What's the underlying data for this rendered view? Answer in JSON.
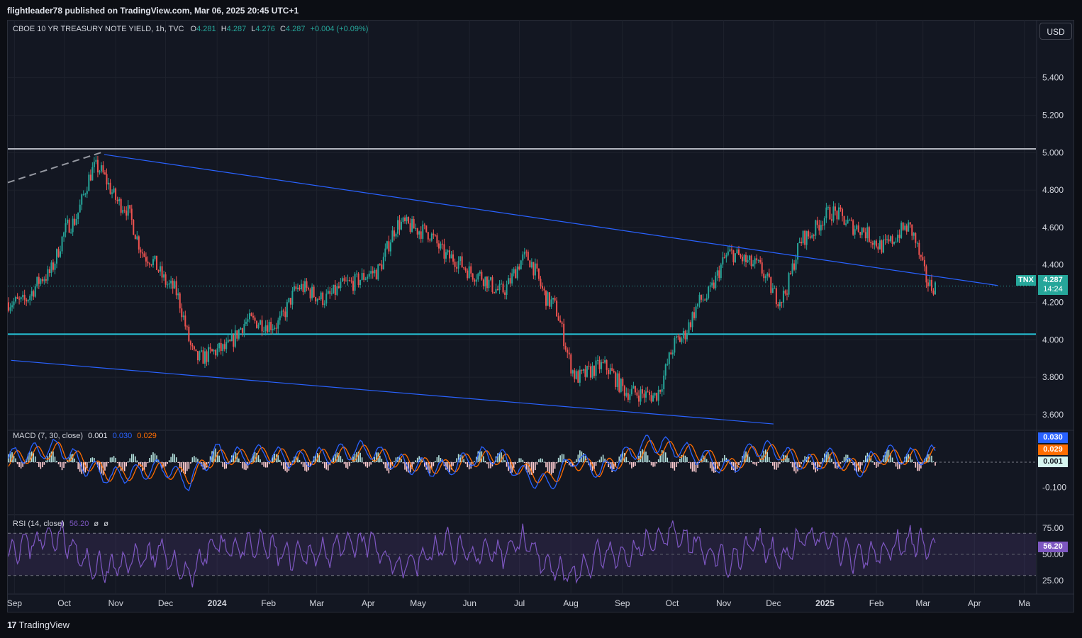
{
  "header": {
    "publish_text": "flightleader78 published on TradingView.com, Mar 06, 2025 20:45 UTC+1"
  },
  "toolbar": {
    "currency_label": "USD"
  },
  "footer": {
    "brand": "TradingView",
    "brand_mark": "17"
  },
  "colors": {
    "up": "#26a69a",
    "down": "#ef5350",
    "channel": "#2962ff",
    "support": "#26c6da",
    "resistance": "#b2b5be",
    "macd": "#2962ff",
    "signal": "#ff6d00",
    "rsi": "#7e57c2"
  },
  "legend": {
    "symbol": "CBOE 10 YR TREASURY NOTE YIELD, 1h, TVC",
    "o_label": "O",
    "o": "4.281",
    "h_label": "H",
    "h": "4.287",
    "l_label": "L",
    "l": "4.276",
    "c_label": "C",
    "c": "4.287",
    "change": "+0.004 (+0.09%)"
  },
  "price_tag": {
    "symbol": "TNX",
    "price": "4.287",
    "countdown": "14:24"
  },
  "macd_legend": {
    "title": "MACD (7, 30, close)",
    "hist": "0.001",
    "macd": "0.030",
    "signal": "0.029"
  },
  "rsi_legend": {
    "title": "RSI (14, close)",
    "value": "56.20",
    "extra1": "ø",
    "extra2": "ø"
  },
  "chart_data": [
    {
      "type": "candlestick",
      "ylim": [
        3.52,
        5.52
      ],
      "yticks": [
        "5.400",
        "5.200",
        "5.000",
        "4.800",
        "4.600",
        "4.400",
        "4.200",
        "4.000",
        "3.800",
        "3.600"
      ],
      "xticks": [
        "Sep",
        "Oct",
        "Nov",
        "Dec",
        "2024",
        "Feb",
        "Mar",
        "Apr",
        "May",
        "Jun",
        "Jul",
        "Aug",
        "Sep",
        "Oct",
        "Nov",
        "Dec",
        "2025",
        "Feb",
        "Mar",
        "Apr",
        "Ma"
      ],
      "x": [
        "2023-09-05",
        "2023-09-20",
        "2023-10-05",
        "2023-10-20",
        "2023-11-05",
        "2023-11-20",
        "2023-12-05",
        "2023-12-20",
        "2024-01-05",
        "2024-01-20",
        "2024-02-05",
        "2024-02-20",
        "2024-03-05",
        "2024-03-20",
        "2024-04-05",
        "2024-04-20",
        "2024-05-05",
        "2024-05-20",
        "2024-06-05",
        "2024-06-20",
        "2024-07-05",
        "2024-07-20",
        "2024-08-05",
        "2024-08-20",
        "2024-09-05",
        "2024-09-20",
        "2024-10-05",
        "2024-10-20",
        "2024-11-05",
        "2024-11-20",
        "2024-12-05",
        "2024-12-20",
        "2025-01-05",
        "2025-01-20",
        "2025-02-05",
        "2025-02-20",
        "2025-03-06"
      ],
      "values": [
        4.2,
        4.34,
        4.62,
        4.92,
        4.72,
        4.44,
        4.28,
        3.9,
        3.95,
        4.1,
        4.08,
        4.28,
        4.22,
        4.3,
        4.36,
        4.62,
        4.58,
        4.44,
        4.35,
        4.26,
        4.44,
        4.2,
        3.8,
        3.86,
        3.72,
        3.7,
        4.0,
        4.22,
        4.46,
        4.4,
        4.22,
        4.55,
        4.68,
        4.6,
        4.5,
        4.6,
        4.287
      ],
      "last_price": 4.287,
      "support_level": 4.03,
      "resistance_level": 5.02,
      "upper_trendline": [
        [
          "2023-10-25",
          4.99
        ],
        [
          "2025-04-15",
          4.29
        ]
      ],
      "lower_trendline": [
        [
          "2023-08-30",
          3.89
        ],
        [
          "2024-12-01",
          3.55
        ]
      ]
    },
    {
      "type": "line",
      "name": "MACD (7, 30, close)",
      "yticks": [
        "-0.100"
      ],
      "series": [
        {
          "name": "MACD",
          "values": [
            0.02,
            0.04,
            0.06,
            -0.02,
            -0.06,
            -0.04,
            -0.02,
            -0.08,
            0.04,
            0.02,
            0.04,
            0.01,
            0.02,
            0.04,
            0.05,
            0.0,
            -0.02,
            -0.03,
            0.02,
            0.03,
            -0.05,
            -0.09,
            0.02,
            -0.04,
            0.03,
            0.08,
            0.05,
            0.02,
            -0.03,
            0.06,
            0.04,
            -0.01,
            0.02,
            -0.03,
            0.04,
            0.02,
            0.03
          ]
        },
        {
          "name": "Signal",
          "values": [
            0.01,
            0.03,
            0.05,
            0.0,
            -0.05,
            -0.04,
            -0.03,
            -0.06,
            0.02,
            0.02,
            0.03,
            0.02,
            0.02,
            0.03,
            0.04,
            0.01,
            -0.01,
            -0.02,
            0.01,
            0.02,
            -0.03,
            -0.07,
            0.0,
            -0.03,
            0.02,
            0.06,
            0.05,
            0.03,
            -0.02,
            0.04,
            0.04,
            0.0,
            0.01,
            -0.02,
            0.02,
            0.02,
            0.029
          ]
        }
      ],
      "last": {
        "macd": 0.03,
        "signal": 0.029,
        "hist": 0.001
      }
    },
    {
      "type": "line",
      "name": "RSI (14, close)",
      "yticks": [
        "75.00",
        "50.00",
        "25.00"
      ],
      "ylim": [
        15,
        85
      ],
      "series": [
        {
          "name": "RSI",
          "values": [
            55,
            62,
            70,
            40,
            35,
            48,
            50,
            30,
            60,
            55,
            58,
            45,
            52,
            55,
            62,
            40,
            45,
            60,
            50,
            48,
            65,
            40,
            30,
            50,
            45,
            65,
            70,
            55,
            40,
            62,
            45,
            68,
            60,
            45,
            52,
            65,
            56.2
          ]
        }
      ],
      "last": 56.2
    }
  ]
}
